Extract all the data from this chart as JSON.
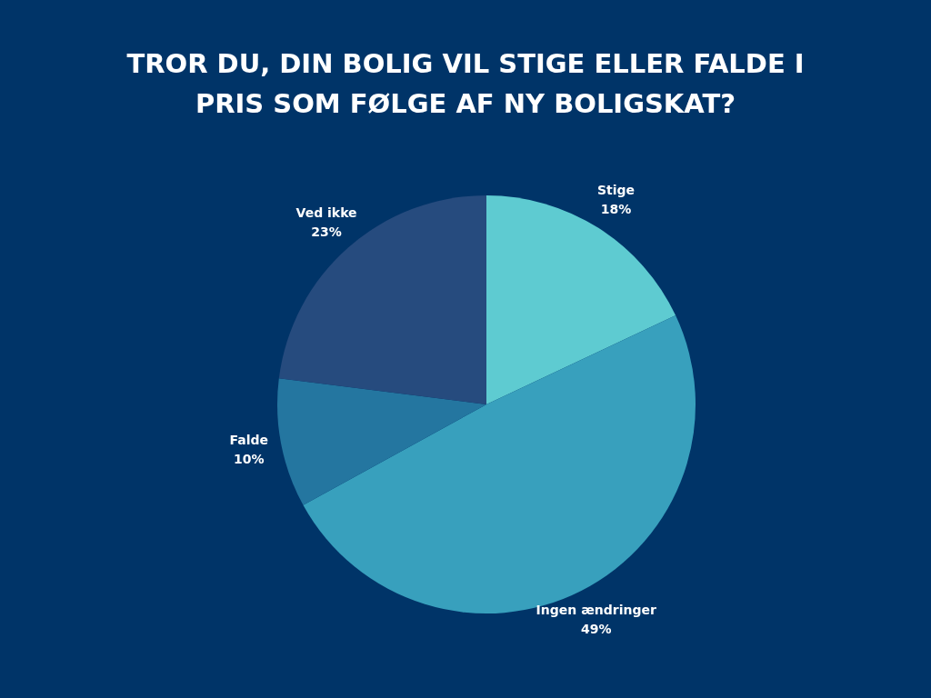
{
  "chart_data": {
    "type": "pie",
    "title": "TROR DU, DIN BOLIG VIL STIGE ELLER FALDE I PRIS SOM FØLGE AF NY BOLIGSKAT?",
    "categories": [
      "Stige",
      "Ingen ændringer",
      "Falde",
      "Ved ikke"
    ],
    "values": [
      18,
      49,
      10,
      23
    ],
    "value_labels": [
      "18%",
      "49%",
      "10%",
      "23%"
    ],
    "colors": [
      "#5ecbd1",
      "#38a0bd",
      "#2476a0",
      "#264b7e"
    ],
    "legend": false
  }
}
